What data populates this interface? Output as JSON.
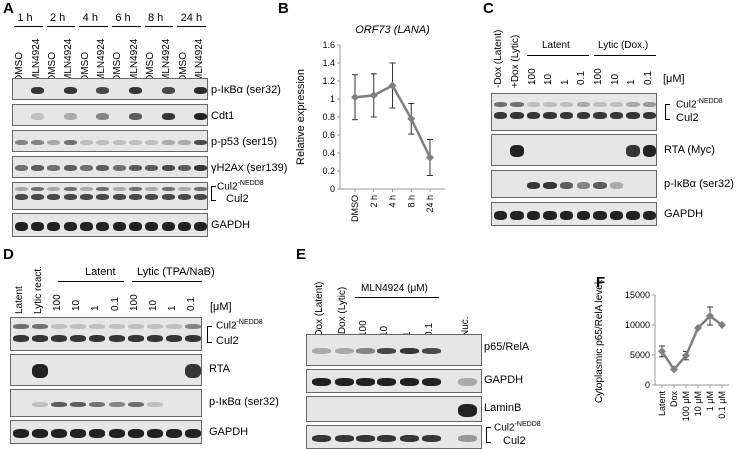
{
  "panels": {
    "A": {
      "label": "A",
      "times": [
        "1 h",
        "2 h",
        "4 h",
        "6 h",
        "8 h",
        "24 h"
      ],
      "lanes": [
        "DMSO",
        "MLN4924",
        "DMSO",
        "MLN4924",
        "DMSO",
        "MLN4924",
        "DMSO",
        "MLN4924",
        "DMSO",
        "MLN4924",
        "DMSO",
        "MLN4924"
      ],
      "rows": [
        "p-IκBα (ser32)",
        "Cdt1",
        "p-p53 (ser15)",
        "γH2Ax (ser139)",
        "Cul2",
        "GAPDH"
      ],
      "cul2_nedd_base": "Cul2",
      "cul2_nedd_sup": "-NEDD8"
    },
    "B": {
      "label": "B"
    },
    "C": {
      "label": "C",
      "lanes": [
        "-Dox (Latent)",
        "+Dox (Lytic)",
        "100",
        "10",
        "1",
        "0.1",
        "100",
        "10",
        "1",
        "0.1"
      ],
      "group_latent": "Latent",
      "group_lytic": "Lytic (Dox.)",
      "unit": "[μM]",
      "rows": [
        "Cul2",
        "RTA (Myc)",
        "p-IκBα (ser32)",
        "GAPDH"
      ],
      "cul2_nedd_base": "Cul2",
      "cul2_nedd_sup": "-NEDD8"
    },
    "D": {
      "label": "D",
      "lanes": [
        "Latent",
        "Lytic react.",
        "100",
        "10",
        "1",
        "0.1",
        "100",
        "10",
        "1",
        "0.1"
      ],
      "group_latent": "Latent",
      "group_lytic": "Lytic (TPA/NaB)",
      "unit": "[μM]",
      "rows": [
        "Cul2",
        "RTA",
        "p-IκBα (ser32)",
        "GAPDH"
      ],
      "cul2_nedd_base": "Cul2",
      "cul2_nedd_sup": "-NEDD8"
    },
    "E": {
      "label": "E",
      "lanes": [
        "-Dox (Latent)",
        "+Dox (Lytic)",
        "100",
        "10",
        "1",
        "0.1",
        "Nuc."
      ],
      "group": "MLN4924 (μM)",
      "rows": [
        "p65/RelA",
        "GAPDH",
        "LaminB",
        "Cul2"
      ],
      "cul2_nedd_base": "Cul2",
      "cul2_nedd_sup": "-NEDD8"
    },
    "F": {
      "label": "F"
    }
  },
  "chart_data": [
    {
      "type": "line",
      "panel": "B",
      "title": "ORF73 (LANA)",
      "ylabel": "Relative expression",
      "xlabel": "",
      "categories": [
        "DMSO",
        "2 h",
        "4 h",
        "8 h",
        "24 h"
      ],
      "values": [
        1.02,
        1.04,
        1.15,
        0.78,
        0.35
      ],
      "errors": [
        0.25,
        0.24,
        0.25,
        0.17,
        0.2
      ],
      "ylim": [
        0,
        1.6
      ],
      "yticks": [
        "0",
        "0.2",
        "0.4",
        "0.6",
        "0.8",
        "1",
        "1.2",
        "1.4",
        "1.6"
      ],
      "color": "#7f7f7f"
    },
    {
      "type": "line",
      "panel": "F",
      "title": "",
      "ylabel": "Cytoplasmic p65/RelA levels",
      "xlabel": "",
      "categories": [
        "Latent",
        "Dox",
        "100 μM",
        "10 μM",
        "1 μM",
        "0.1 μM"
      ],
      "values": [
        5600,
        2600,
        4900,
        9500,
        11500,
        10000
      ],
      "errors": [
        900,
        0,
        700,
        0,
        1500,
        0
      ],
      "ylim": [
        0,
        15000
      ],
      "yticks": [
        "0",
        "5000",
        "10000",
        "15000"
      ],
      "color": "#7f7f7f"
    }
  ]
}
